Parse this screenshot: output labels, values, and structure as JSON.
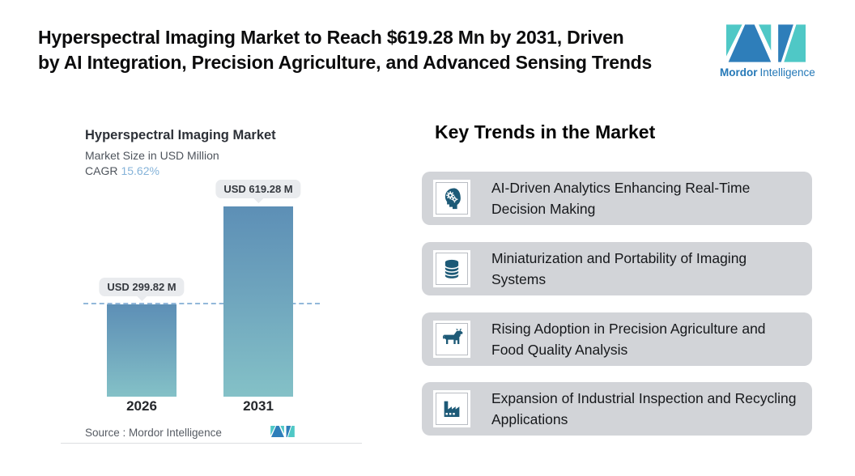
{
  "header": {
    "title_line1": "Hyperspectral Imaging Market to Reach $619.28 Mn by 2031, Driven",
    "title_line2": "by AI Integration, Precision Agriculture, and Advanced Sensing Trends",
    "brand": {
      "name_bold": "Mordor",
      "name_light": "Intelligence"
    }
  },
  "chart": {
    "title": "Hyperspectral Imaging Market",
    "subtitle": "Market Size in USD Million",
    "cagr_label": "CAGR",
    "cagr_value": "15.62%",
    "bars": [
      {
        "year": "2026",
        "label": "USD 299.82 M"
      },
      {
        "year": "2031",
        "label": "USD 619.28 M"
      }
    ],
    "source": "Source :  Mordor Intelligence"
  },
  "chart_data": {
    "type": "bar",
    "title": "Hyperspectral Imaging Market",
    "subtitle": "Market Size in USD Million",
    "unit": "USD Million",
    "cagr_percent": 15.62,
    "categories": [
      "2026",
      "2031"
    ],
    "values": [
      299.82,
      619.28
    ],
    "data_labels": [
      "USD 299.82 M",
      "USD 619.28 M"
    ],
    "reference_line_value": 299.82,
    "ylim": [
      0,
      650
    ],
    "grid": false,
    "legend": "none",
    "source": "Mordor Intelligence"
  },
  "trends": {
    "heading": "Key Trends in the Market",
    "items": [
      {
        "icon": "head-gears-icon",
        "text": "AI-Driven Analytics Enhancing Real-Time Decision Making"
      },
      {
        "icon": "database-icon",
        "text": "Miniaturization and Portability of Imaging Systems"
      },
      {
        "icon": "cow-icon",
        "text": "Rising Adoption in Precision Agriculture and Food Quality Analysis"
      },
      {
        "icon": "factory-icon",
        "text": "Expansion of Industrial Inspection and Recycling Applications"
      }
    ]
  },
  "colors": {
    "brand_teal": "#4fc8c6",
    "brand_blue": "#2e7eba",
    "brand_text_blue": "#2478b7",
    "trend_icon_color": "#1d5a77",
    "card_background": "#d2d4d8",
    "bar_gradient_top": "#5d8fb6",
    "bar_gradient_bottom": "#84c1c7",
    "dashed_reference_line": "#93b8da",
    "cagr_value_blue": "#85b3d9"
  }
}
